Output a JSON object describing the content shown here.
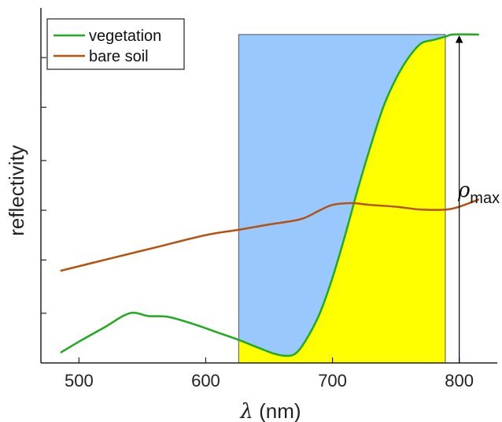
{
  "chart_data": {
    "type": "line",
    "xlabel_symbol": "λ",
    "xlabel_unit": " (nm)",
    "ylabel": "reflectivity",
    "xlim": [
      470,
      830
    ],
    "ylim": [
      0,
      1
    ],
    "xticks": [
      500,
      600,
      700,
      800
    ],
    "yticks": [
      0.14,
      0.29,
      0.43,
      0.57,
      0.72,
      0.86
    ],
    "grid": false,
    "legend_position": "top-left",
    "series": [
      {
        "name": "vegetation",
        "color": "#1faa1f",
        "x": [
          486,
          500,
          520,
          540,
          555,
          570,
          590,
          610,
          626,
          640,
          655,
          665,
          672,
          680,
          690,
          700,
          710,
          720,
          730,
          740,
          750,
          760,
          770,
          780,
          790,
          795,
          815
        ],
        "y": [
          0.03,
          0.06,
          0.1,
          0.14,
          0.132,
          0.13,
          0.11,
          0.085,
          0.065,
          0.045,
          0.025,
          0.02,
          0.03,
          0.07,
          0.14,
          0.24,
          0.36,
          0.49,
          0.61,
          0.72,
          0.8,
          0.86,
          0.9,
          0.91,
          0.92,
          0.925,
          0.925
        ]
      },
      {
        "name": "bare soil",
        "color": "#b5520f",
        "x": [
          486,
          520,
          560,
          600,
          626,
          650,
          675,
          690,
          700,
          715,
          730,
          750,
          770,
          790,
          800,
          815
        ],
        "y": [
          0.26,
          0.29,
          0.325,
          0.36,
          0.375,
          0.39,
          0.405,
          0.43,
          0.445,
          0.45,
          0.445,
          0.44,
          0.432,
          0.432,
          0.44,
          0.46
        ]
      }
    ],
    "highlight_band": {
      "x_start": 626,
      "x_end": 789,
      "top_value": 0.925,
      "color_above": "#99c8ff",
      "color_below": "#ffff00"
    },
    "annotation": {
      "symbol": "ρ",
      "subscript": "max",
      "x": 800,
      "y_from": 0,
      "y_to": 0.925
    }
  }
}
